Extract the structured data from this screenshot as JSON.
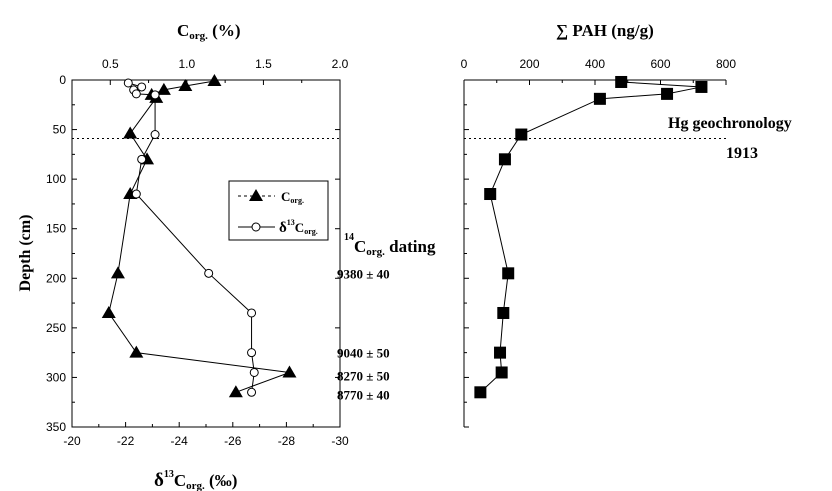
{
  "chart_data": [
    {
      "type": "line",
      "title": "",
      "ylabel": "Depth (cm)",
      "ylim": [
        350,
        0
      ],
      "y_ticks": [
        "0",
        "50",
        "100",
        "150",
        "200",
        "250",
        "300",
        "350"
      ],
      "top_axis": {
        "label_main": "C",
        "label_sub": "org.",
        "label_tail": " (%)",
        "xlim": [
          0.25,
          2.0
        ],
        "ticks": [
          "0.5",
          "1.0",
          "1.5",
          "2.0"
        ]
      },
      "bottom_axis": {
        "label_delta": "δ",
        "label_sup": "13",
        "label_main": "C",
        "label_sub": "org.",
        "label_tail": " (‰)",
        "xlim": [
          -20,
          -30
        ],
        "ticks": [
          "-20",
          "-22",
          "-24",
          "-26",
          "-28",
          "-30"
        ]
      },
      "legend": {
        "position": "right-upper",
        "corg": {
          "main": "C",
          "sub": "org."
        },
        "d13c": {
          "delta": "δ",
          "sup": "13",
          "main": "C",
          "sub": "org."
        }
      },
      "series": [
        {
          "key": "corg",
          "axis": "top",
          "marker": "filled-triangle",
          "points": [
            {
              "x": 1.18,
              "y": 1
            },
            {
              "x": 0.99,
              "y": 6
            },
            {
              "x": 0.85,
              "y": 10
            },
            {
              "x": 0.77,
              "y": 15
            },
            {
              "x": 0.8,
              "y": 18
            },
            {
              "x": 0.63,
              "y": 54
            },
            {
              "x": 0.74,
              "y": 80
            },
            {
              "x": 0.63,
              "y": 115
            },
            {
              "x": 0.55,
              "y": 195
            },
            {
              "x": 0.49,
              "y": 235
            },
            {
              "x": 0.67,
              "y": 275
            },
            {
              "x": 1.67,
              "y": 295
            },
            {
              "x": 1.32,
              "y": 315
            }
          ]
        },
        {
          "key": "d13c",
          "axis": "bottom",
          "marker": "open-circle",
          "points": [
            {
              "x": -22.1,
              "y": 3
            },
            {
              "x": -22.6,
              "y": 7
            },
            {
              "x": -22.3,
              "y": 10
            },
            {
              "x": -22.4,
              "y": 14
            },
            {
              "x": -23.1,
              "y": 15
            },
            {
              "x": -23.1,
              "y": 55
            },
            {
              "x": -22.6,
              "y": 80
            },
            {
              "x": -22.4,
              "y": 115
            },
            {
              "x": -25.1,
              "y": 195
            },
            {
              "x": -26.7,
              "y": 235
            },
            {
              "x": -26.7,
              "y": 275
            },
            {
              "x": -26.8,
              "y": 295
            },
            {
              "x": -26.7,
              "y": 315
            }
          ]
        }
      ],
      "annotations": {
        "dating_title": {
          "sup": "14",
          "main": "C",
          "sub": "org.",
          "tail": " dating"
        },
        "dates": [
          {
            "text": "9380 ± 40",
            "depth": 195
          },
          {
            "text": "9040 ± 50",
            "depth": 275
          },
          {
            "text": "8270 ± 50",
            "depth": 298
          },
          {
            "text": "8770 ± 40",
            "depth": 317
          }
        ]
      }
    },
    {
      "type": "line",
      "title": "",
      "top_axis": {
        "label": "∑ PAH (ng/g)",
        "xlim": [
          0,
          800
        ],
        "ticks": [
          "0",
          "200",
          "400",
          "600",
          "800"
        ]
      },
      "ylim": [
        350,
        0
      ],
      "series": [
        {
          "name": "∑ PAH",
          "marker": "filled-square",
          "points": [
            {
              "x": 480,
              "y": 2
            },
            {
              "x": 725,
              "y": 7
            },
            {
              "x": 620,
              "y": 14
            },
            {
              "x": 415,
              "y": 19
            },
            {
              "x": 175,
              "y": 55
            },
            {
              "x": 125,
              "y": 80
            },
            {
              "x": 80,
              "y": 115
            },
            {
              "x": 135,
              "y": 195
            },
            {
              "x": 120,
              "y": 235
            },
            {
              "x": 110,
              "y": 275
            },
            {
              "x": 115,
              "y": 295
            },
            {
              "x": 50,
              "y": 315
            }
          ]
        }
      ],
      "annotation": {
        "line1": "Hg geochronology",
        "line2": "1913",
        "depth": 59
      }
    }
  ]
}
